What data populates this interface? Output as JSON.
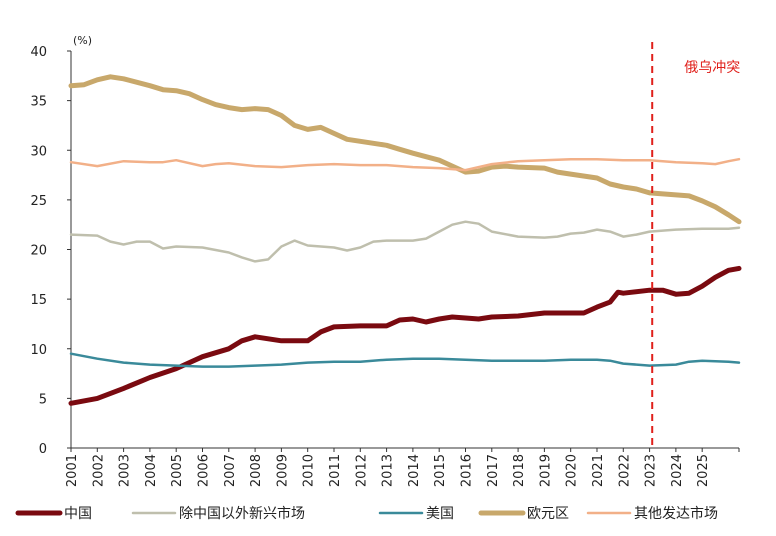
{
  "chart_data": {
    "type": "line",
    "title": "",
    "unit_label": "(%)",
    "xlabel": "",
    "ylabel": "",
    "xlim": [
      2001,
      2026
    ],
    "ylim": [
      0,
      40
    ],
    "y_ticks": [
      "0",
      "5",
      "10",
      "15",
      "20",
      "25",
      "30",
      "35",
      "40"
    ],
    "x_ticks": [
      "2001",
      "2002",
      "2003",
      "2004",
      "2005",
      "2006",
      "2007",
      "2008",
      "2009",
      "2010",
      "2011",
      "2012",
      "2013",
      "2014",
      "2015",
      "2016",
      "2017",
      "2018",
      "2019",
      "2020",
      "2021",
      "2022",
      "2023",
      "2024",
      "2025"
    ],
    "grid": false,
    "legend_position": "bottom",
    "annotation": {
      "x": 2023.1,
      "label": "俄乌冲突",
      "color": "#e0201b",
      "style": "dashed-vertical"
    },
    "series": [
      {
        "name": "中国",
        "color": "#7a0a10",
        "width": 5,
        "points": [
          [
            2001,
            4.5
          ],
          [
            2002,
            5.0
          ],
          [
            2003,
            6.0
          ],
          [
            2004,
            7.1
          ],
          [
            2005,
            8.0
          ],
          [
            2006,
            9.2
          ],
          [
            2007,
            10.0
          ],
          [
            2007.5,
            10.8
          ],
          [
            2008,
            11.2
          ],
          [
            2009,
            10.8
          ],
          [
            2010,
            10.8
          ],
          [
            2010.5,
            11.7
          ],
          [
            2011,
            12.2
          ],
          [
            2012,
            12.3
          ],
          [
            2013,
            12.3
          ],
          [
            2013.5,
            12.9
          ],
          [
            2014,
            13.0
          ],
          [
            2014.5,
            12.7
          ],
          [
            2015,
            13.0
          ],
          [
            2015.5,
            13.2
          ],
          [
            2016,
            13.1
          ],
          [
            2016.5,
            13.0
          ],
          [
            2017,
            13.2
          ],
          [
            2018,
            13.3
          ],
          [
            2019,
            13.6
          ],
          [
            2020,
            13.6
          ],
          [
            2020.5,
            13.6
          ],
          [
            2021,
            14.2
          ],
          [
            2021.5,
            14.7
          ],
          [
            2021.8,
            15.7
          ],
          [
            2022,
            15.6
          ],
          [
            2023,
            15.9
          ],
          [
            2023.5,
            15.9
          ],
          [
            2024,
            15.5
          ],
          [
            2024.5,
            15.6
          ],
          [
            2025,
            16.3
          ],
          [
            2025.5,
            17.2
          ],
          [
            2026,
            17.9
          ],
          [
            2026.4,
            18.1
          ]
        ]
      },
      {
        "name": "除中国以外新兴市场",
        "color": "#bfbfad",
        "width": 2.5,
        "points": [
          [
            2001,
            21.5
          ],
          [
            2002,
            21.4
          ],
          [
            2002.5,
            20.8
          ],
          [
            2003,
            20.5
          ],
          [
            2003.5,
            20.8
          ],
          [
            2004,
            20.8
          ],
          [
            2004.5,
            20.1
          ],
          [
            2005,
            20.3
          ],
          [
            2006,
            20.2
          ],
          [
            2007,
            19.7
          ],
          [
            2007.5,
            19.2
          ],
          [
            2008,
            18.8
          ],
          [
            2008.5,
            19.0
          ],
          [
            2009,
            20.3
          ],
          [
            2009.5,
            20.9
          ],
          [
            2010,
            20.4
          ],
          [
            2011,
            20.2
          ],
          [
            2011.5,
            19.9
          ],
          [
            2012,
            20.2
          ],
          [
            2012.5,
            20.8
          ],
          [
            2013,
            20.9
          ],
          [
            2014,
            20.9
          ],
          [
            2014.5,
            21.1
          ],
          [
            2015,
            21.8
          ],
          [
            2015.5,
            22.5
          ],
          [
            2016,
            22.8
          ],
          [
            2016.5,
            22.6
          ],
          [
            2017,
            21.8
          ],
          [
            2018,
            21.3
          ],
          [
            2019,
            21.2
          ],
          [
            2019.5,
            21.3
          ],
          [
            2020,
            21.6
          ],
          [
            2020.5,
            21.7
          ],
          [
            2021,
            22.0
          ],
          [
            2021.5,
            21.8
          ],
          [
            2022,
            21.3
          ],
          [
            2022.5,
            21.5
          ],
          [
            2023,
            21.8
          ],
          [
            2024,
            22.0
          ],
          [
            2025,
            22.1
          ],
          [
            2026,
            22.1
          ],
          [
            2026.4,
            22.2
          ]
        ]
      },
      {
        "name": "美国",
        "color": "#3a8a9a",
        "width": 2.5,
        "points": [
          [
            2001,
            9.5
          ],
          [
            2002,
            9.0
          ],
          [
            2003,
            8.6
          ],
          [
            2004,
            8.4
          ],
          [
            2005,
            8.3
          ],
          [
            2006,
            8.2
          ],
          [
            2007,
            8.2
          ],
          [
            2008,
            8.3
          ],
          [
            2009,
            8.4
          ],
          [
            2010,
            8.6
          ],
          [
            2011,
            8.7
          ],
          [
            2012,
            8.7
          ],
          [
            2013,
            8.9
          ],
          [
            2014,
            9.0
          ],
          [
            2015,
            9.0
          ],
          [
            2016,
            8.9
          ],
          [
            2017,
            8.8
          ],
          [
            2018,
            8.8
          ],
          [
            2019,
            8.8
          ],
          [
            2020,
            8.9
          ],
          [
            2021,
            8.9
          ],
          [
            2021.5,
            8.8
          ],
          [
            2022,
            8.5
          ],
          [
            2023,
            8.3
          ],
          [
            2024,
            8.4
          ],
          [
            2024.5,
            8.7
          ],
          [
            2025,
            8.8
          ],
          [
            2026,
            8.7
          ],
          [
            2026.4,
            8.6
          ]
        ]
      },
      {
        "name": "欧元区",
        "color": "#c8a86b",
        "width": 5,
        "points": [
          [
            2001,
            36.5
          ],
          [
            2001.5,
            36.6
          ],
          [
            2002,
            37.1
          ],
          [
            2002.5,
            37.4
          ],
          [
            2003,
            37.2
          ],
          [
            2004,
            36.5
          ],
          [
            2004.5,
            36.1
          ],
          [
            2005,
            36.0
          ],
          [
            2005.5,
            35.7
          ],
          [
            2006,
            35.1
          ],
          [
            2006.5,
            34.6
          ],
          [
            2007,
            34.3
          ],
          [
            2007.5,
            34.1
          ],
          [
            2008,
            34.2
          ],
          [
            2008.5,
            34.1
          ],
          [
            2009,
            33.5
          ],
          [
            2009.5,
            32.5
          ],
          [
            2010,
            32.1
          ],
          [
            2010.5,
            32.3
          ],
          [
            2011,
            31.7
          ],
          [
            2011.5,
            31.1
          ],
          [
            2012,
            30.9
          ],
          [
            2013,
            30.5
          ],
          [
            2013.5,
            30.1
          ],
          [
            2014,
            29.7
          ],
          [
            2015,
            29.0
          ],
          [
            2015.5,
            28.4
          ],
          [
            2016,
            27.8
          ],
          [
            2016.5,
            27.9
          ],
          [
            2017,
            28.3
          ],
          [
            2017.5,
            28.4
          ],
          [
            2018,
            28.3
          ],
          [
            2019,
            28.2
          ],
          [
            2019.5,
            27.8
          ],
          [
            2020,
            27.6
          ],
          [
            2021,
            27.2
          ],
          [
            2021.5,
            26.6
          ],
          [
            2022,
            26.3
          ],
          [
            2022.5,
            26.1
          ],
          [
            2023,
            25.7
          ],
          [
            2024,
            25.5
          ],
          [
            2024.5,
            25.4
          ],
          [
            2025,
            24.9
          ],
          [
            2025.5,
            24.3
          ],
          [
            2026,
            23.5
          ],
          [
            2026.4,
            22.8
          ]
        ]
      },
      {
        "name": "其他发达市场",
        "color": "#f2b088",
        "width": 2.5,
        "points": [
          [
            2001,
            28.8
          ],
          [
            2002,
            28.4
          ],
          [
            2003,
            28.9
          ],
          [
            2004,
            28.8
          ],
          [
            2004.5,
            28.8
          ],
          [
            2005,
            29.0
          ],
          [
            2006,
            28.4
          ],
          [
            2006.5,
            28.6
          ],
          [
            2007,
            28.7
          ],
          [
            2008,
            28.4
          ],
          [
            2009,
            28.3
          ],
          [
            2010,
            28.5
          ],
          [
            2011,
            28.6
          ],
          [
            2012,
            28.5
          ],
          [
            2013,
            28.5
          ],
          [
            2014,
            28.3
          ],
          [
            2015,
            28.2
          ],
          [
            2016,
            28.0
          ],
          [
            2017,
            28.6
          ],
          [
            2018,
            28.9
          ],
          [
            2019,
            29.0
          ],
          [
            2020,
            29.1
          ],
          [
            2021,
            29.1
          ],
          [
            2022,
            29.0
          ],
          [
            2023,
            29.0
          ],
          [
            2024,
            28.8
          ],
          [
            2025,
            28.7
          ],
          [
            2025.5,
            28.6
          ],
          [
            2026,
            28.9
          ],
          [
            2026.4,
            29.1
          ]
        ]
      }
    ]
  }
}
